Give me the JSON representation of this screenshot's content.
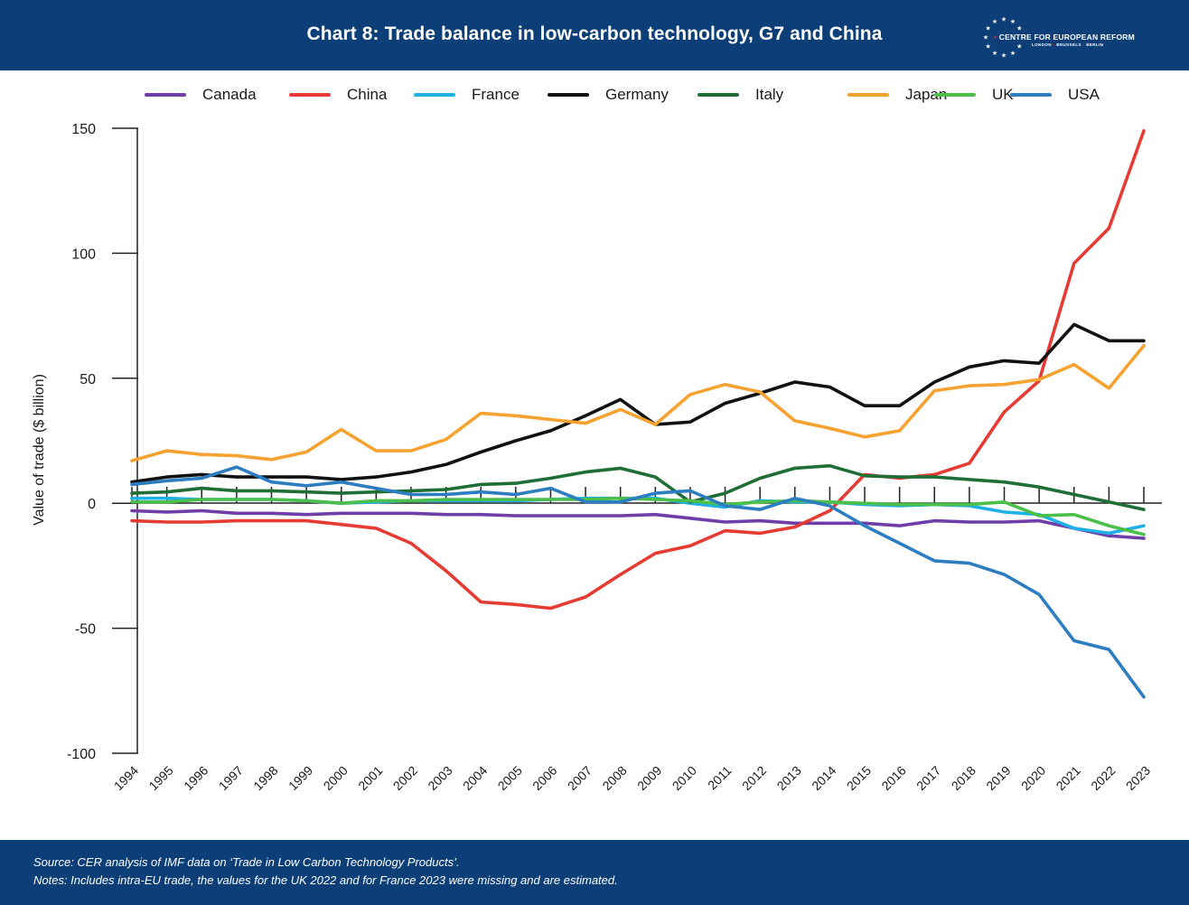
{
  "header": {
    "title": "Chart 8: Trade balance in low-carbon technology, G7 and China",
    "logo_name": "CENTRE FOR EUROPEAN REFORM",
    "logo_cities": [
      "LONDON",
      "BRUSSELS",
      "BERLIN"
    ]
  },
  "footer": {
    "source": "Source: CER analysis of IMF data on ‘Trade in Low Carbon Technology Products’.",
    "notes": "Notes: Includes intra-EU trade, the values for the UK 2022 and for France 2023 were missing and are estimated."
  },
  "colors": {
    "brand_blue": "#0c3f78",
    "logo_accent": "#e0282e"
  },
  "chart_data": {
    "type": "line",
    "title": "Chart 8: Trade balance in low-carbon technology, G7 and China",
    "xlabel": "",
    "ylabel": "Value of trade ($ billion)",
    "ylim": [
      -100,
      150
    ],
    "yticks": [
      150,
      100,
      50,
      0,
      -50,
      -100
    ],
    "ytick_labels": [
      "150",
      "100",
      "50",
      "0",
      "-50",
      "-100"
    ],
    "grid": false,
    "legend_position": "top",
    "x": [
      "1994",
      "1995",
      "1996",
      "1997",
      "1998",
      "1999",
      "2000",
      "2001",
      "2002",
      "2003",
      "2004",
      "2005",
      "2006",
      "2007",
      "2008",
      "2009",
      "2010",
      "2011",
      "2012",
      "2013",
      "2014",
      "2015",
      "2016",
      "2017",
      "2018",
      "2019",
      "2020",
      "2021",
      "2022",
      "2023"
    ],
    "series": [
      {
        "name": "Canada",
        "color": "#6f3ea8",
        "values": [
          -3,
          -3.5,
          -3,
          -4,
          -4,
          -4.5,
          -4,
          -4,
          -4,
          -4.5,
          -4.5,
          -5,
          -5,
          -5,
          -5,
          -4.5,
          -6,
          -7.5,
          -7,
          -8,
          -8,
          -8,
          -9,
          -7,
          -7.5,
          -7.5,
          -7,
          -10,
          -13,
          -14
        ]
      },
      {
        "name": "China",
        "color": "#e63b33",
        "values": [
          -7,
          -7.5,
          -7.5,
          -7,
          -7,
          -7,
          -8.5,
          -10,
          -16,
          -27,
          -39.5,
          -40.5,
          -42,
          -37.5,
          -28.5,
          -20,
          -17,
          -11,
          -12,
          -9.5,
          -3,
          11.5,
          10,
          11.5,
          16,
          36.5,
          49,
          96,
          110,
          149
        ]
      },
      {
        "name": "France",
        "color": "#1eb0e6",
        "values": [
          2,
          2,
          1.5,
          1.5,
          1.5,
          1,
          0,
          0.5,
          1,
          1,
          1,
          1,
          1.5,
          2,
          2,
          2,
          0,
          -1.5,
          1,
          0.5,
          0.5,
          -0.5,
          -1,
          -0.5,
          -1,
          -3.5,
          -4.5,
          -10,
          -12,
          -9
        ]
      },
      {
        "name": "Germany",
        "color": "#111111",
        "values": [
          8.5,
          10.5,
          11.5,
          10.5,
          10.5,
          10.5,
          9.5,
          10.5,
          12.5,
          15.5,
          20.5,
          25,
          29,
          35,
          41.5,
          31.5,
          32.5,
          40,
          44,
          48.5,
          46.5,
          39,
          39,
          48.5,
          54.5,
          57,
          56,
          71.5,
          65,
          65
        ]
      },
      {
        "name": "Italy",
        "color": "#1e6e35",
        "values": [
          4,
          4.5,
          6,
          5,
          5,
          4.5,
          4,
          4.5,
          5,
          5.5,
          7.5,
          8,
          10,
          12.5,
          14,
          10.5,
          0.5,
          4,
          10,
          14,
          15,
          11,
          10.5,
          10.5,
          9.5,
          8.5,
          6.5,
          3.5,
          0.5,
          -2.5
        ]
      },
      {
        "name": "Japan",
        "color": "#f5a230",
        "values": [
          17,
          21,
          19.5,
          19,
          17.5,
          20.5,
          29.5,
          21,
          21,
          25.5,
          36,
          35,
          33.5,
          32,
          37.5,
          31.5,
          43.5,
          47.5,
          44.5,
          33,
          30,
          26.5,
          29,
          45,
          47,
          47.5,
          49.5,
          55.5,
          46,
          63
        ]
      },
      {
        "name": "UK",
        "color": "#4cbf4a",
        "values": [
          0.5,
          0.5,
          1.5,
          1.5,
          1.5,
          1,
          0,
          1,
          1,
          1.5,
          1.5,
          1.5,
          1.5,
          1.5,
          2,
          1.5,
          1,
          -0.5,
          0.5,
          1,
          0.5,
          0,
          -0.5,
          -0.5,
          -0.5,
          0.5,
          -5,
          -4.5,
          -9,
          -12.5
        ]
      },
      {
        "name": "USA",
        "color": "#2d7dc1",
        "values": [
          7.5,
          9,
          10,
          14.5,
          8.5,
          7,
          8.5,
          6,
          3.5,
          3.5,
          4.5,
          3.5,
          6,
          0.5,
          0.5,
          4,
          5,
          -1,
          -2.5,
          2,
          -1,
          -9,
          -16,
          -23,
          -24,
          -28.5,
          -36.5,
          -55,
          -58.5,
          -77.5
        ]
      }
    ]
  }
}
